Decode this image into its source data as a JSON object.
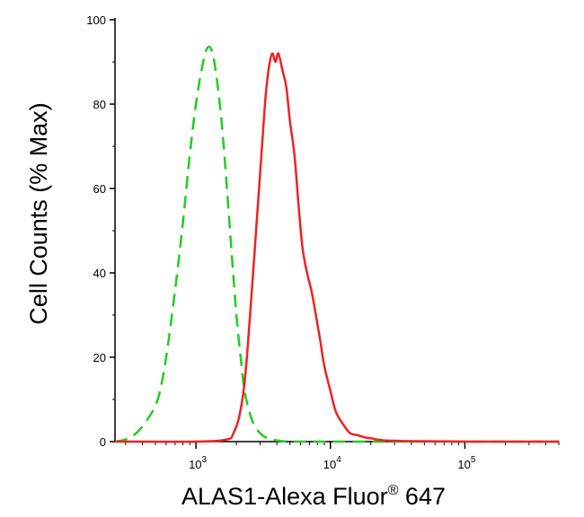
{
  "chart_data": {
    "type": "line",
    "xlabel": "ALAS1-Alexa Fluor",
    "xlabel_sup": "®",
    "xlabel_suffix": " 647",
    "ylabel": "Cell Counts (% Max)",
    "x_scale": "log",
    "xlim": [
      250,
      500000
    ],
    "ylim": [
      0,
      100
    ],
    "y_ticks": [
      0,
      20,
      40,
      60,
      80,
      100
    ],
    "x_ticks": [
      {
        "value": 1000,
        "base": "10",
        "exp": "3"
      },
      {
        "value": 10000,
        "base": "10",
        "exp": "4"
      },
      {
        "value": 100000,
        "base": "10",
        "exp": "5"
      }
    ],
    "grid": false,
    "series": [
      {
        "color": "#22cc22",
        "dash": "dashed",
        "x": [
          250,
          300,
          360,
          430,
          520,
          600,
          700,
          800,
          900,
          1000,
          1100,
          1200,
          1300,
          1400,
          1550,
          1700,
          1850,
          2000,
          2150,
          2300,
          2500,
          2700,
          3000,
          3300,
          3700,
          4200,
          5000,
          10000,
          100000,
          500000
        ],
        "y": [
          0,
          0.5,
          2,
          5,
          10,
          20,
          36,
          52,
          68,
          80,
          88,
          93,
          93,
          88,
          76,
          60,
          44,
          30,
          20,
          12,
          7,
          4,
          2,
          1,
          0.5,
          0.2,
          0,
          0,
          0,
          0
        ]
      },
      {
        "color": "#ee2222",
        "dash": "solid",
        "x": [
          250,
          1000,
          1700,
          1900,
          2100,
          2300,
          2500,
          2800,
          3100,
          3300,
          3500,
          3700,
          3900,
          4100,
          4400,
          4700,
          5000,
          5400,
          5800,
          6200,
          6700,
          7200,
          7800,
          8400,
          9000,
          10000,
          11000,
          12500,
          14000,
          16000,
          18000,
          20000,
          22000,
          25000,
          30000,
          40000,
          100000,
          500000
        ],
        "y": [
          0,
          0,
          0.5,
          2,
          6,
          14,
          28,
          50,
          70,
          82,
          89,
          92,
          90,
          92,
          88,
          84,
          76,
          68,
          56,
          46,
          40,
          36,
          30,
          24,
          18,
          12,
          7,
          4,
          2,
          1.5,
          1,
          0.8,
          0.5,
          0.3,
          0.2,
          0.1,
          0,
          0
        ]
      }
    ]
  }
}
